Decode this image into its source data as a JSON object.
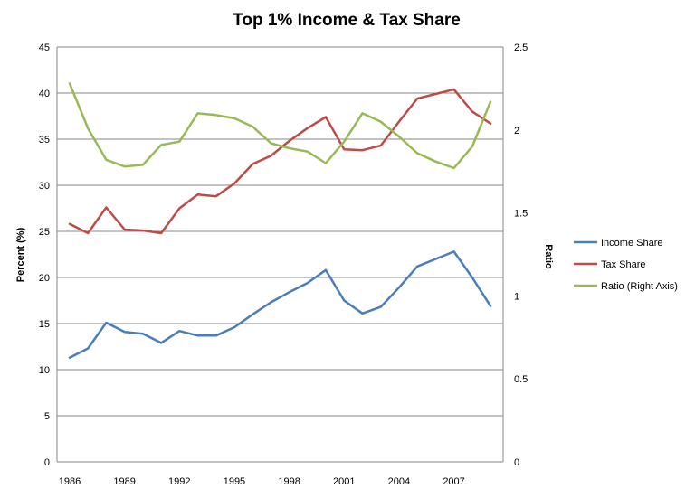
{
  "chart_data": {
    "type": "line",
    "title": "Top 1% Income & Tax Share",
    "xlabel": "",
    "ylabel": "Percent (%)",
    "y2label": "Ratio",
    "x": [
      1986,
      1987,
      1988,
      1989,
      1990,
      1991,
      1992,
      1993,
      1994,
      1995,
      1996,
      1997,
      1998,
      1999,
      2000,
      2001,
      2002,
      2003,
      2004,
      2005,
      2006,
      2007,
      2008,
      2009
    ],
    "x_tick_labels": [
      "1986",
      "1989",
      "1992",
      "1995",
      "1998",
      "2001",
      "2004",
      "2007"
    ],
    "ylim": [
      0,
      45
    ],
    "y_ticks": [
      "0",
      "5",
      "10",
      "15",
      "20",
      "25",
      "30",
      "35",
      "40",
      "45"
    ],
    "y2lim": [
      0,
      2.5
    ],
    "y2_ticks": [
      "0",
      "0.5",
      "1",
      "1.5",
      "2",
      "2.5"
    ],
    "grid": true,
    "legend_position": "right",
    "series": [
      {
        "name": "Income Share",
        "axis": "left",
        "color": "#4a7ebb",
        "values": [
          11.3,
          12.3,
          15.1,
          14.1,
          13.9,
          12.9,
          14.2,
          13.7,
          13.7,
          14.6,
          16.0,
          17.3,
          18.4,
          19.4,
          20.8,
          17.5,
          16.1,
          16.8,
          18.9,
          21.2,
          22.0,
          22.8,
          20.0,
          16.9
        ]
      },
      {
        "name": "Tax Share",
        "axis": "left",
        "color": "#be4b48",
        "values": [
          25.8,
          24.8,
          27.6,
          25.2,
          25.1,
          24.8,
          27.5,
          29.0,
          28.8,
          30.2,
          32.3,
          33.2,
          34.8,
          36.2,
          37.4,
          33.9,
          33.8,
          34.3,
          36.9,
          39.4,
          39.9,
          40.4,
          38.0,
          36.7
        ]
      },
      {
        "name": "Ratio (Right Axis)",
        "axis": "right",
        "color": "#98b954",
        "values": [
          2.28,
          2.01,
          1.82,
          1.78,
          1.79,
          1.91,
          1.93,
          2.1,
          2.09,
          2.07,
          2.02,
          1.92,
          1.89,
          1.87,
          1.8,
          1.93,
          2.1,
          2.05,
          1.96,
          1.86,
          1.81,
          1.77,
          1.9,
          2.17
        ]
      }
    ]
  }
}
